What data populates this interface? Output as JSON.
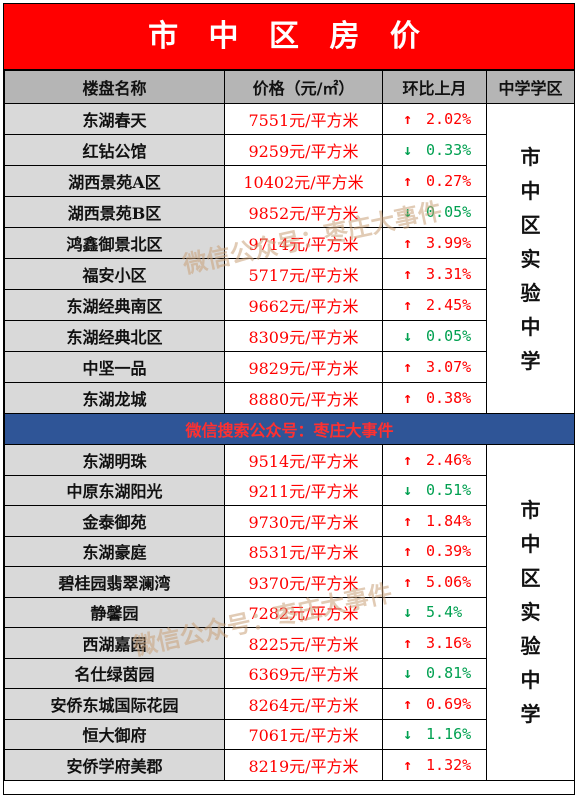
{
  "title": "市 中 区 房 价",
  "headers": {
    "name": "楼盘名称",
    "price": "价格（元/㎡）",
    "change": "环比上月",
    "school": "中学学区"
  },
  "group1": {
    "school": "市中区实验中学",
    "rows": [
      {
        "name": "东湖春天",
        "price": "7551元/平方米",
        "dir": "up",
        "change": "2.02%"
      },
      {
        "name": "红钻公馆",
        "price": "9259元/平方米",
        "dir": "down",
        "change": "0.33%"
      },
      {
        "name": "湖西景苑A区",
        "price": "10402元/平方米",
        "dir": "up",
        "change": "0.27%"
      },
      {
        "name": "湖西景苑B区",
        "price": "9852元/平方米",
        "dir": "down",
        "change": "0.05%"
      },
      {
        "name": "鸿鑫御景北区",
        "price": "9714元/平方米",
        "dir": "up",
        "change": "3.99%"
      },
      {
        "name": "福安小区",
        "price": "5717元/平方米",
        "dir": "up",
        "change": "3.31%"
      },
      {
        "name": "东湖经典南区",
        "price": "9662元/平方米",
        "dir": "up",
        "change": "2.45%"
      },
      {
        "name": "东湖经典北区",
        "price": "8309元/平方米",
        "dir": "down",
        "change": "0.05%"
      },
      {
        "name": "中坚一品",
        "price": "9829元/平方米",
        "dir": "up",
        "change": "3.07%"
      },
      {
        "name": "东湖龙城",
        "price": "8880元/平方米",
        "dir": "up",
        "change": "0.38%"
      }
    ]
  },
  "banner": "微信搜索公众号：枣庄大事件",
  "group2": {
    "school": "市中区实验中学",
    "rows": [
      {
        "name": "东湖明珠",
        "price": "9514元/平方米",
        "dir": "up",
        "change": "2.46%"
      },
      {
        "name": "中原东湖阳光",
        "price": "9211元/平方米",
        "dir": "down",
        "change": "0.51%"
      },
      {
        "name": "金泰御苑",
        "price": "9730元/平方米",
        "dir": "up",
        "change": "1.84%"
      },
      {
        "name": "东湖豪庭",
        "price": "8531元/平方米",
        "dir": "up",
        "change": "0.39%"
      },
      {
        "name": "碧桂园翡翠澜湾",
        "price": "9370元/平方米",
        "dir": "up",
        "change": "5.06%"
      },
      {
        "name": "静馨园",
        "price": "7282元/平方米",
        "dir": "down",
        "change": "5.4%"
      },
      {
        "name": "西湖嘉园",
        "price": "8225元/平方米",
        "dir": "up",
        "change": "3.16%"
      },
      {
        "name": "名仕绿茵园",
        "price": "6369元/平方米",
        "dir": "down",
        "change": "0.81%"
      },
      {
        "name": "安侨东城国际花园",
        "price": "8264元/平方米",
        "dir": "up",
        "change": "0.69%"
      },
      {
        "name": "恒大御府",
        "price": "7061元/平方米",
        "dir": "down",
        "change": "1.16%"
      },
      {
        "name": "安侨学府美郡",
        "price": "8219元/平方米",
        "dir": "up",
        "change": "1.32%"
      }
    ]
  },
  "watermark": "微信公众号：枣庄大事件",
  "arrows": {
    "up": "↑",
    "down": "↓"
  },
  "colors": {
    "title_bg": "#ff0000",
    "up": "#ff0000",
    "down": "#00a050",
    "banner_bg": "#2f5597"
  }
}
